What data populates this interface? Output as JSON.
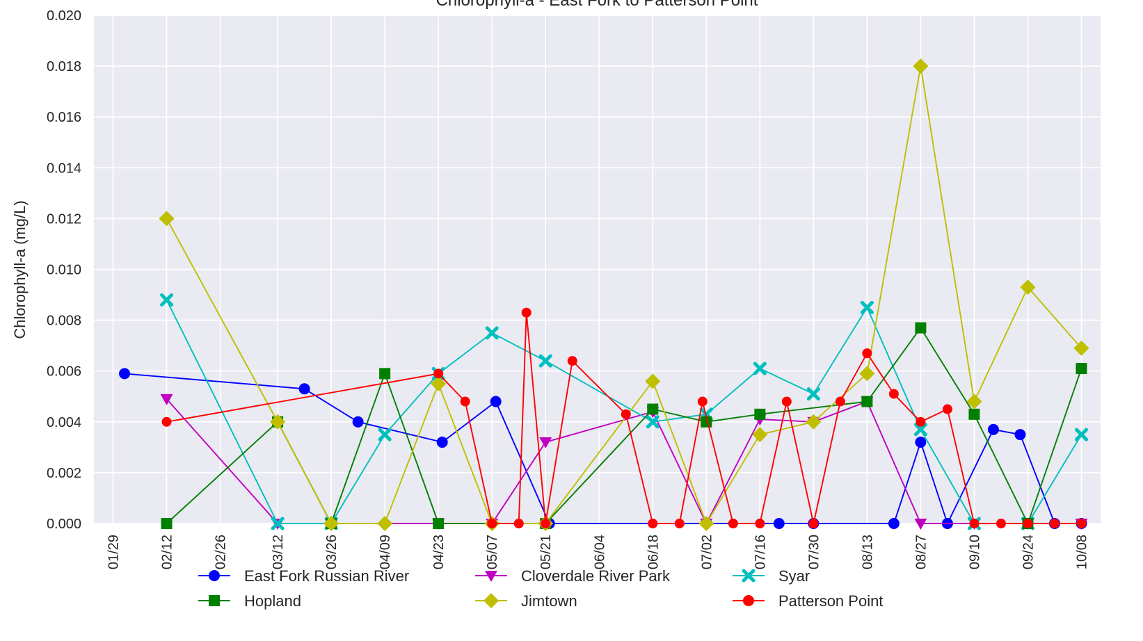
{
  "chart_data": {
    "type": "line",
    "title": "Chlorophyll-a - East Fork to Patterson Point",
    "xlabel": "",
    "ylabel": "Chlorophyll-a (mg/L)",
    "ylim": [
      0,
      0.02
    ],
    "xlim": [
      "01/24",
      "10/13"
    ],
    "x_ticks": [
      "01/29",
      "02/12",
      "02/26",
      "03/12",
      "03/26",
      "04/09",
      "04/23",
      "05/07",
      "05/21",
      "06/04",
      "06/18",
      "07/02",
      "07/16",
      "07/30",
      "08/13",
      "08/27",
      "09/10",
      "09/24",
      "10/08"
    ],
    "y_ticks": [
      "0.000",
      "0.002",
      "0.004",
      "0.006",
      "0.008",
      "0.010",
      "0.012",
      "0.014",
      "0.016",
      "0.018",
      "0.020"
    ],
    "grid": true,
    "legend_position": "bottom",
    "series": [
      {
        "name": "East Fork Russian River",
        "color": "#0000ff",
        "marker": "circle",
        "points": [
          [
            "02/01",
            0.0059
          ],
          [
            "03/19",
            0.0053
          ],
          [
            "04/02",
            0.004
          ],
          [
            "04/24",
            0.0032
          ],
          [
            "05/08",
            0.0048
          ],
          [
            "05/22",
            0.0
          ],
          [
            "07/21",
            0.0
          ],
          [
            "07/30",
            0.0
          ],
          [
            "08/20",
            0.0
          ],
          [
            "08/27",
            0.0032
          ],
          [
            "09/03",
            0.0
          ],
          [
            "09/15",
            0.0037
          ],
          [
            "09/22",
            0.0035
          ],
          [
            "10/01",
            0.0
          ],
          [
            "10/08",
            0.0
          ]
        ]
      },
      {
        "name": "Cloverdale River Park",
        "color": "#bf00bf",
        "marker": "triangle-down",
        "points": [
          [
            "02/12",
            0.0049
          ],
          [
            "03/12",
            0.0
          ],
          [
            "04/23",
            0.0
          ],
          [
            "05/07",
            0.0
          ],
          [
            "05/21",
            0.0032
          ],
          [
            "06/18",
            0.0044
          ],
          [
            "07/02",
            0.0
          ],
          [
            "07/16",
            0.0041
          ],
          [
            "07/30",
            0.004
          ],
          [
            "08/13",
            0.0048
          ],
          [
            "08/27",
            0.0
          ],
          [
            "09/10",
            0.0
          ],
          [
            "09/24",
            0.0
          ],
          [
            "10/08",
            0.0
          ]
        ]
      },
      {
        "name": "Syar",
        "color": "#00bfbf",
        "marker": "x",
        "points": [
          [
            "02/12",
            0.0088
          ],
          [
            "03/12",
            0.0
          ],
          [
            "03/26",
            0.0
          ],
          [
            "04/09",
            0.0035
          ],
          [
            "04/23",
            0.0059
          ],
          [
            "05/07",
            0.0075
          ],
          [
            "05/21",
            0.0064
          ],
          [
            "06/18",
            0.004
          ],
          [
            "07/02",
            0.0043
          ],
          [
            "07/16",
            0.0061
          ],
          [
            "07/30",
            0.0051
          ],
          [
            "08/13",
            0.0085
          ],
          [
            "08/27",
            0.0037
          ],
          [
            "09/10",
            0.0
          ],
          [
            "09/24",
            0.0
          ],
          [
            "10/08",
            0.0035
          ]
        ]
      },
      {
        "name": "Hopland",
        "color": "#008000",
        "marker": "square",
        "points": [
          [
            "02/12",
            0.0
          ],
          [
            "03/12",
            0.004
          ],
          [
            "03/26",
            0.0
          ],
          [
            "04/09",
            0.0059
          ],
          [
            "04/23",
            0.0
          ],
          [
            "05/21",
            0.0
          ],
          [
            "06/18",
            0.0045
          ],
          [
            "07/02",
            0.004
          ],
          [
            "07/16",
            0.0043
          ],
          [
            "08/13",
            0.0048
          ],
          [
            "08/27",
            0.0077
          ],
          [
            "09/10",
            0.0043
          ],
          [
            "09/24",
            0.0
          ],
          [
            "10/08",
            0.0061
          ]
        ]
      },
      {
        "name": "Jimtown",
        "color": "#bfbf00",
        "marker": "diamond",
        "points": [
          [
            "02/12",
            0.012
          ],
          [
            "03/12",
            0.004
          ],
          [
            "03/26",
            0.0
          ],
          [
            "04/09",
            0.0
          ],
          [
            "04/23",
            0.0055
          ],
          [
            "05/07",
            0.0
          ],
          [
            "05/21",
            0.0
          ],
          [
            "06/18",
            0.0056
          ],
          [
            "07/02",
            0.0
          ],
          [
            "07/16",
            0.0035
          ],
          [
            "07/30",
            0.004
          ],
          [
            "08/13",
            0.0059
          ],
          [
            "08/27",
            0.018
          ],
          [
            "09/10",
            0.0048
          ],
          [
            "09/24",
            0.0093
          ],
          [
            "10/08",
            0.0069
          ]
        ]
      },
      {
        "name": "Patterson Point",
        "color": "#ff0000",
        "marker": "circle-small",
        "points": [
          [
            "02/12",
            0.004
          ],
          [
            "04/23",
            0.0059
          ],
          [
            "04/30",
            0.0048
          ],
          [
            "05/07",
            0.0
          ],
          [
            "05/14",
            0.0
          ],
          [
            "05/16",
            0.0083
          ],
          [
            "05/21",
            0.0
          ],
          [
            "05/28",
            0.0064
          ],
          [
            "06/11",
            0.0043
          ],
          [
            "06/18",
            0.0
          ],
          [
            "06/25",
            0.0
          ],
          [
            "07/01",
            0.0048
          ],
          [
            "07/09",
            0.0
          ],
          [
            "07/16",
            0.0
          ],
          [
            "07/23",
            0.0048
          ],
          [
            "07/30",
            0.0
          ],
          [
            "08/06",
            0.0048
          ],
          [
            "08/13",
            0.0067
          ],
          [
            "08/20",
            0.0051
          ],
          [
            "08/27",
            0.004
          ],
          [
            "09/03",
            0.0045
          ],
          [
            "09/10",
            0.0
          ],
          [
            "09/17",
            0.0
          ],
          [
            "09/24",
            0.0
          ],
          [
            "10/01",
            0.0
          ],
          [
            "10/08",
            0.0
          ]
        ]
      }
    ]
  }
}
